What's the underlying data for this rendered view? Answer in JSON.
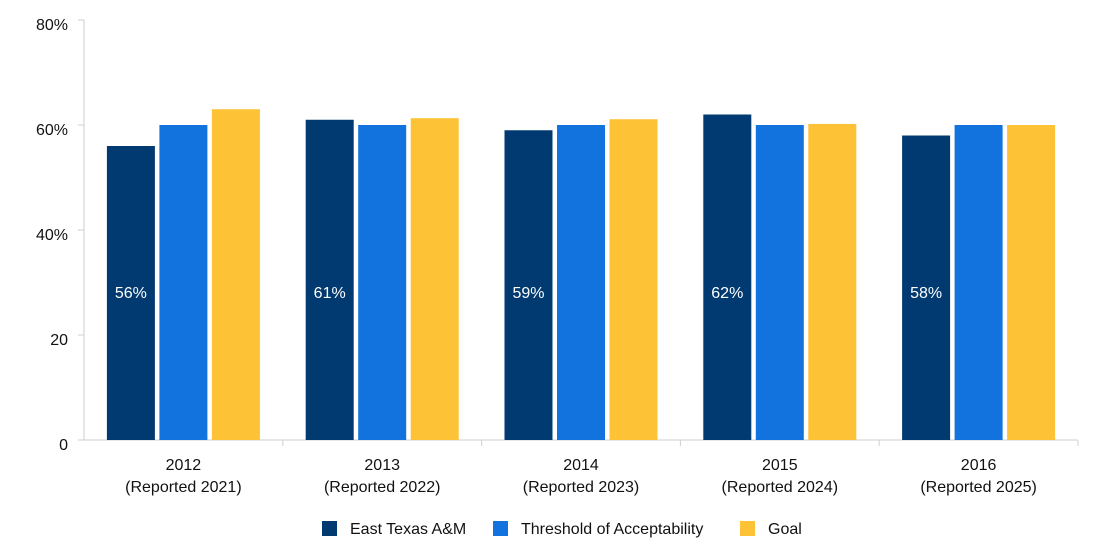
{
  "chart_data": {
    "type": "bar",
    "categories": [
      "2012\n(Reported 2021)",
      "2013\n(Reported 2022)",
      "2014\n(Reported 2023)",
      "2015\n(Reported 2024)",
      "2016\n(Reported 2025)"
    ],
    "series": [
      {
        "name": "East Texas A&M",
        "color": "#003a70",
        "values": [
          56,
          61,
          59,
          62,
          58
        ],
        "value_labels": [
          "56%",
          "61%",
          "59%",
          "62%",
          "58%"
        ]
      },
      {
        "name": "Threshold of Acceptability",
        "color": "#1273de",
        "values": [
          60,
          60,
          60,
          60,
          60
        ]
      },
      {
        "name": "Goal",
        "color": "#fdc236",
        "values": [
          63,
          61.3,
          61.1,
          60.2,
          60
        ]
      }
    ],
    "ylim": [
      0,
      80
    ],
    "yticks": [
      0,
      20,
      {
        "value": 40,
        "label": "40%"
      },
      {
        "value": 60,
        "label": "60%"
      },
      {
        "value": 80,
        "label": "80%"
      }
    ],
    "grid": false,
    "legend": "bottom"
  }
}
